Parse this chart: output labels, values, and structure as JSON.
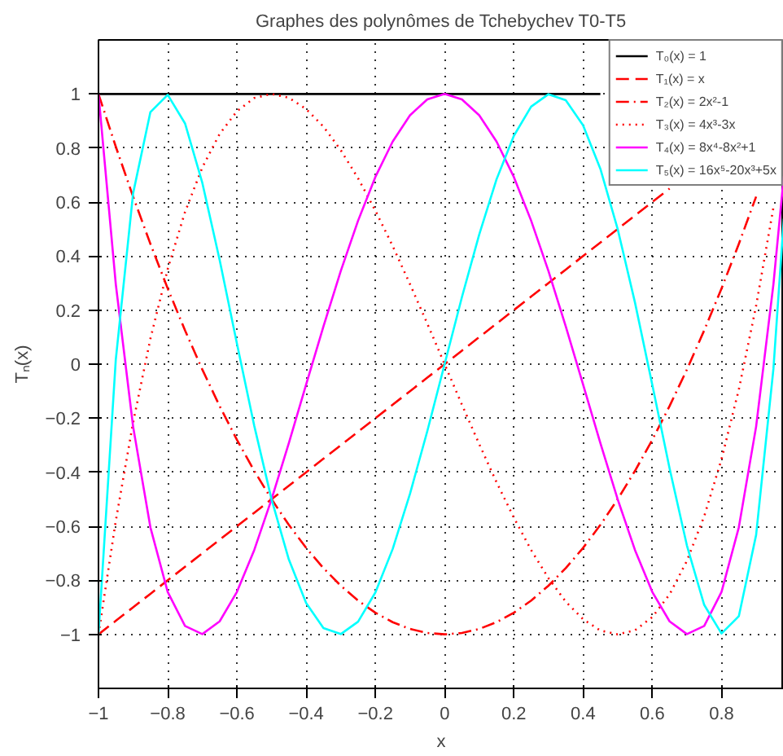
{
  "chart_data": {
    "type": "line",
    "title": "Graphes des polynômes de Tchebychev T0-T5",
    "xlabel": "x",
    "ylabel": "Tₙ(x)",
    "x": [
      -1,
      -0.95,
      -0.9,
      -0.85,
      -0.8,
      -0.75,
      -0.7,
      -0.65,
      -0.6,
      -0.55,
      -0.5,
      -0.45,
      -0.4,
      -0.35,
      -0.3,
      -0.25,
      -0.2,
      -0.15,
      -0.1,
      -0.05,
      0,
      0.05,
      0.1,
      0.15,
      0.2,
      0.25,
      0.3,
      0.35,
      0.4,
      0.45,
      0.5,
      0.55,
      0.6,
      0.65,
      0.7,
      0.75,
      0.8,
      0.85,
      0.9,
      0.95,
      0.98
    ],
    "series": [
      {
        "name": "T₀(x) = 1",
        "color": "#000000",
        "line_style": "solid",
        "values": [
          1,
          1,
          1,
          1,
          1,
          1,
          1,
          1,
          1,
          1,
          1,
          1,
          1,
          1,
          1,
          1,
          1,
          1,
          1,
          1,
          1,
          1,
          1,
          1,
          1,
          1,
          1,
          1,
          1,
          1,
          null,
          null,
          null,
          null,
          null,
          null,
          null,
          null,
          null,
          null,
          null
        ]
      },
      {
        "name": "T₁(x) = x",
        "color": "#ff0000",
        "line_style": "dashed",
        "values": [
          -1,
          -0.95,
          -0.9,
          -0.85,
          -0.8,
          -0.75,
          -0.7,
          -0.65,
          -0.6,
          -0.55,
          -0.5,
          -0.45,
          -0.4,
          -0.35,
          -0.3,
          -0.25,
          -0.2,
          -0.15,
          -0.1,
          -0.05,
          0,
          0.05,
          0.1,
          0.15,
          0.2,
          0.25,
          0.3,
          0.35,
          0.4,
          0.45,
          0.5,
          0.55,
          0.6,
          0.65,
          null,
          null,
          null,
          null,
          null,
          null,
          null
        ]
      },
      {
        "name": "T₂(x) = 2x²-1",
        "color": "#ff0000",
        "line_style": "dashdot",
        "values": [
          1,
          0.805,
          0.62,
          0.445,
          0.28,
          0.125,
          -0.02,
          -0.155,
          -0.28,
          -0.395,
          -0.5,
          -0.595,
          -0.68,
          -0.755,
          -0.82,
          -0.875,
          -0.92,
          -0.955,
          -0.98,
          -0.995,
          -1,
          -0.995,
          -0.98,
          -0.955,
          -0.92,
          -0.875,
          -0.82,
          -0.755,
          -0.68,
          -0.595,
          -0.5,
          -0.395,
          -0.28,
          -0.155,
          -0.02,
          0.125,
          0.28,
          0.445,
          0.62,
          null,
          null
        ]
      },
      {
        "name": "T₃(x) = 4x³-3x",
        "color": "#ff0000",
        "line_style": "dotted",
        "values": [
          -1,
          -0.58,
          -0.216,
          0.094,
          0.352,
          0.563,
          0.728,
          0.852,
          0.936,
          0.985,
          1,
          0.986,
          0.944,
          0.879,
          0.792,
          0.688,
          0.568,
          0.437,
          0.296,
          0.15,
          0,
          -0.15,
          -0.296,
          -0.437,
          -0.568,
          -0.688,
          -0.792,
          -0.879,
          -0.944,
          -0.986,
          -1,
          -0.985,
          -0.936,
          -0.852,
          -0.728,
          -0.563,
          -0.352,
          -0.094,
          0.216,
          0.58,
          null
        ]
      },
      {
        "name": "T₄(x) = 8x⁴-8x²+1",
        "color": "#ff00ff",
        "line_style": "solid",
        "values": [
          1,
          0.296,
          -0.231,
          -0.604,
          -0.843,
          -0.969,
          -0.999,
          -0.952,
          -0.843,
          -0.688,
          -0.5,
          -0.292,
          -0.075,
          0.14,
          0.345,
          0.531,
          0.693,
          0.824,
          0.921,
          0.98,
          1,
          0.98,
          0.921,
          0.824,
          0.693,
          0.531,
          0.345,
          0.14,
          -0.075,
          -0.292,
          -0.5,
          -0.688,
          -0.843,
          -0.952,
          -0.999,
          -0.969,
          -0.843,
          -0.604,
          -0.231,
          0.296,
          0.696
        ]
      },
      {
        "name": "T₅(x) = 16x⁵-20x³+5x",
        "color": "#00ffff",
        "line_style": "solid",
        "values": [
          -1,
          0.017,
          0.632,
          0.933,
          0.997,
          0.891,
          0.671,
          0.386,
          0.076,
          -0.228,
          -0.5,
          -0.723,
          -0.884,
          -0.977,
          -0.999,
          -0.953,
          -0.845,
          -0.684,
          -0.48,
          -0.248,
          0,
          0.248,
          0.48,
          0.684,
          0.845,
          0.953,
          0.999,
          0.977,
          0.884,
          0.723,
          0.5,
          0.228,
          -0.076,
          -0.386,
          -0.671,
          -0.891,
          -0.997,
          -0.933,
          -0.632,
          -0.017,
          0.539
        ]
      }
    ],
    "xlim": [
      -1,
      0.98
    ],
    "ylim": [
      -1.2,
      1.2
    ],
    "xticks": [
      -1,
      -0.8,
      -0.6,
      -0.4,
      -0.2,
      0,
      0.2,
      0.4,
      0.6,
      0.8
    ],
    "yticks": [
      -1,
      -0.8,
      -0.6,
      -0.4,
      -0.2,
      0,
      0.2,
      0.4,
      0.6,
      0.8,
      1
    ],
    "grid": true,
    "legend": "top right"
  }
}
